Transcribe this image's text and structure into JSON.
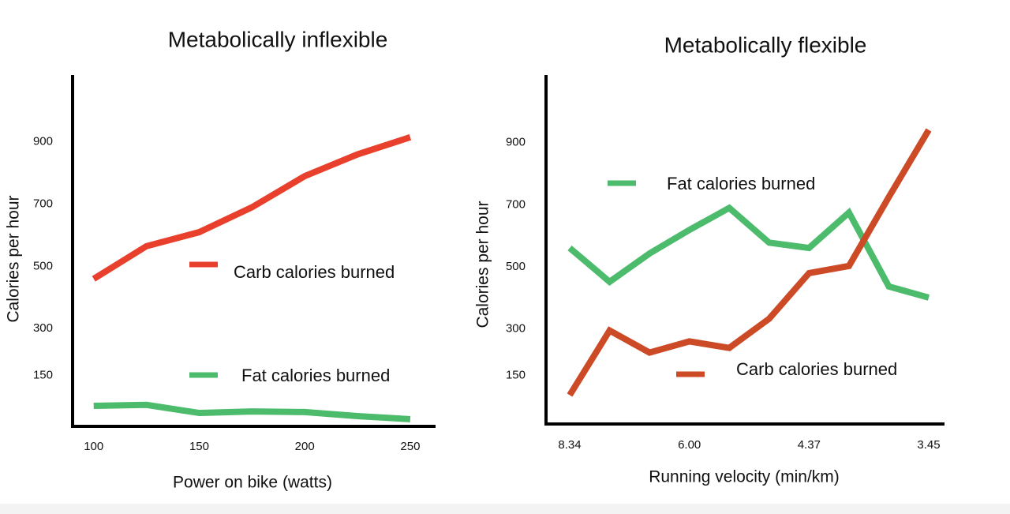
{
  "chart_data": [
    {
      "type": "line",
      "title": "Metabolically inflexible",
      "x_label": "Power on bike (watts)",
      "y_label": "Calories per hour",
      "x": [
        100,
        125,
        150,
        175,
        200,
        225,
        250
      ],
      "series": [
        {
          "name": "Carb calories burned",
          "color": "#e8402c",
          "values": [
            460,
            565,
            610,
            690,
            790,
            860,
            915
          ]
        },
        {
          "name": "Fat calories burned",
          "color": "#4cbb6c",
          "values": [
            52,
            55,
            29,
            34,
            32,
            19,
            9
          ]
        }
      ],
      "xlim": [
        90,
        262
      ],
      "xticks": [
        100,
        150,
        200,
        250
      ],
      "ylim": [
        -14,
        1115
      ],
      "yticks": [
        150,
        300,
        500,
        700,
        900
      ],
      "grid": false
    },
    {
      "type": "line",
      "title": "Metabolically flexible",
      "x_label": "Running velocity (min/km)",
      "y_label": "Calories per hour",
      "categories": [
        "8.34",
        null,
        null,
        "6.00",
        null,
        null,
        "4.37",
        null,
        null,
        "3.45"
      ],
      "series": [
        {
          "name": "Fat calories burned",
          "color": "#4cbb6c",
          "values": [
            561,
            452,
            543,
            619,
            690,
            578,
            561,
            675,
            437,
            401
          ]
        },
        {
          "name": "Carb calories burned",
          "color": "#cc4a25",
          "values": [
            87,
            295,
            224,
            260,
            239,
            333,
            480,
            503,
            725,
            941
          ]
        }
      ],
      "ylim": [
        -6,
        1118
      ],
      "yticks": [
        150,
        300,
        500,
        700,
        900
      ],
      "grid": false
    }
  ]
}
